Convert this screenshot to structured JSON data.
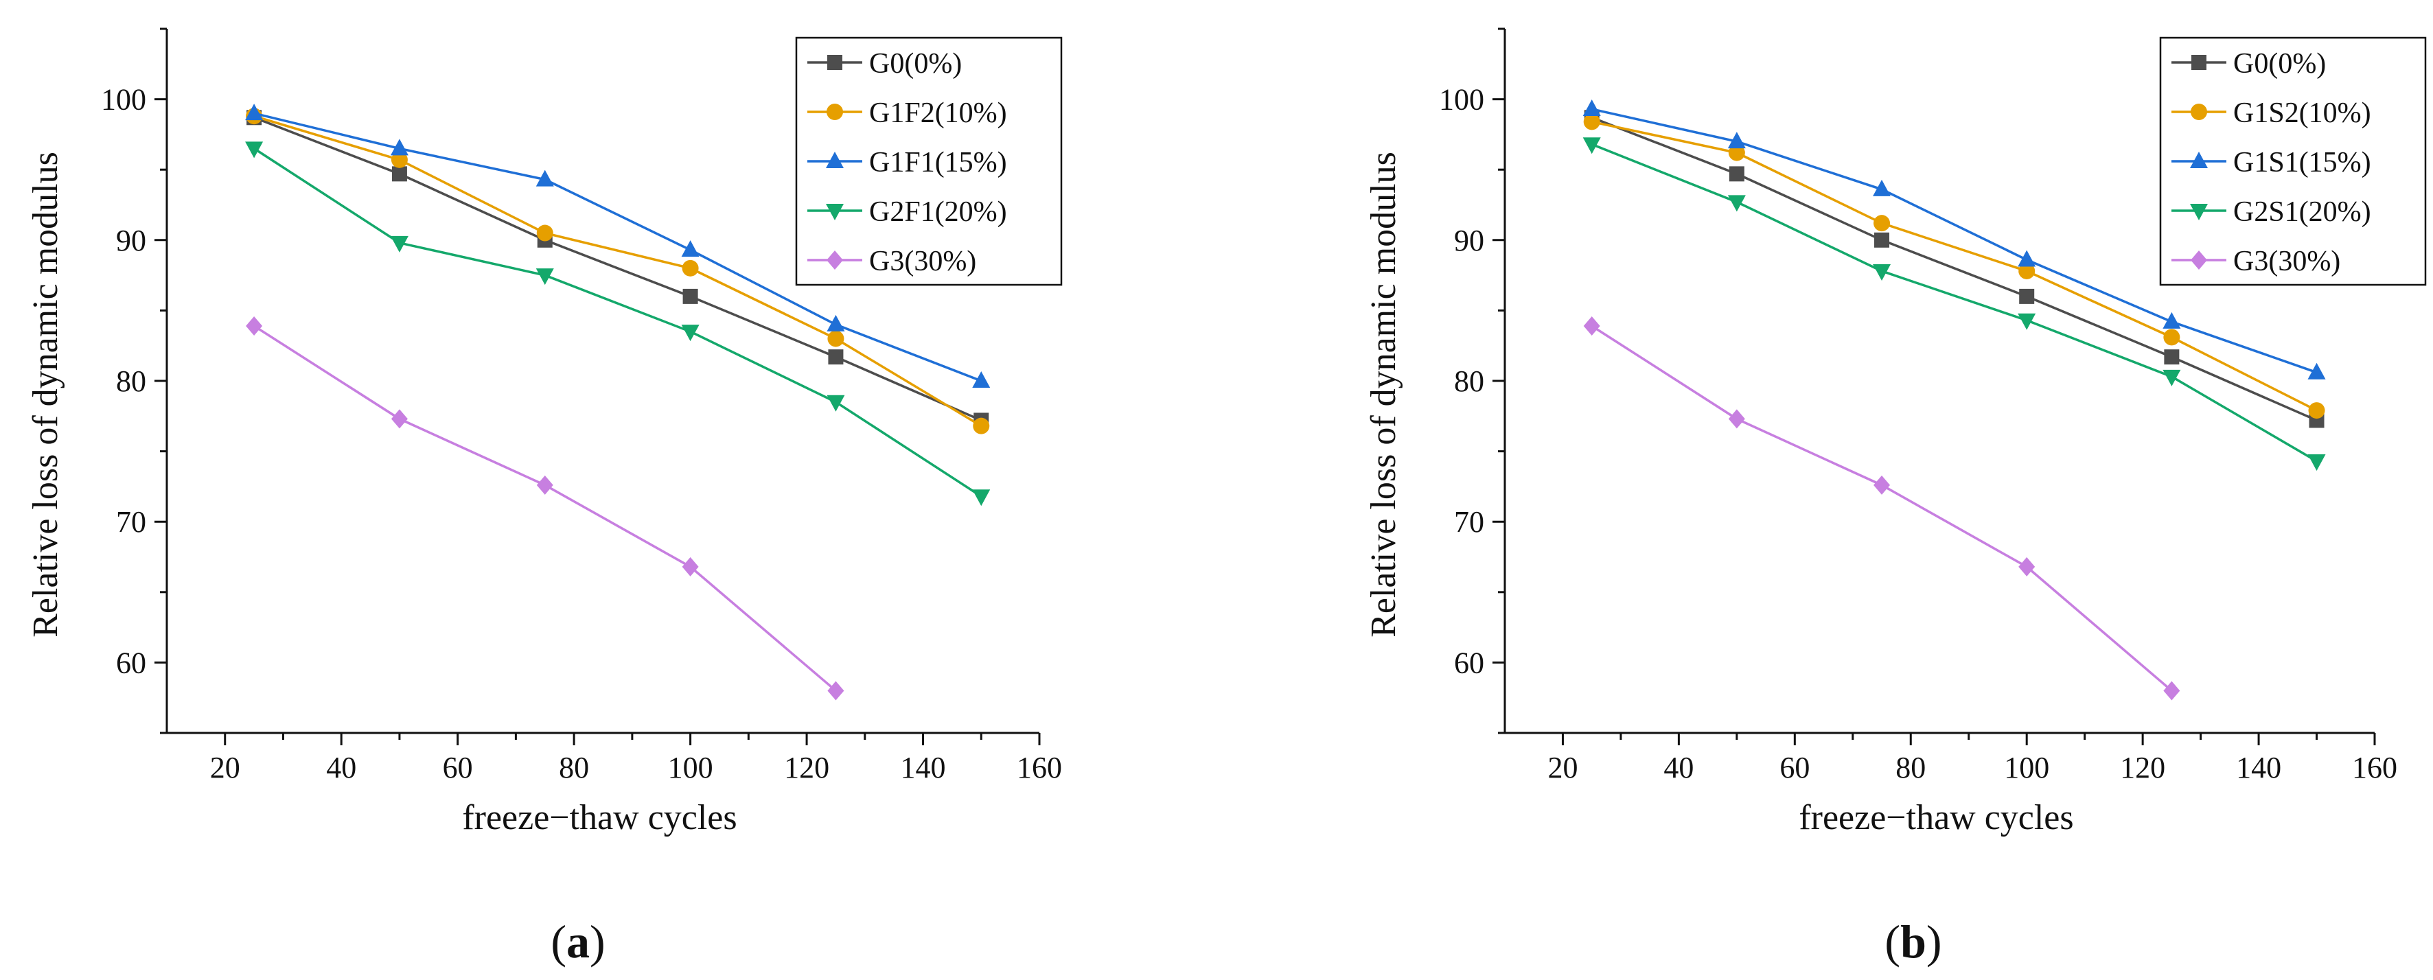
{
  "figure": {
    "panels": [
      {
        "label_open": "(",
        "label_letter": "a",
        "label_close": ")"
      },
      {
        "label_open": "(",
        "label_letter": "b",
        "label_close": ")"
      }
    ]
  },
  "chart_data": [
    {
      "type": "line",
      "title": "",
      "panel": "(a)",
      "xlabel": "freeze−thaw cycles",
      "ylabel": "Relative loss of dynamic modulus",
      "xlim": [
        10,
        160
      ],
      "ylim": [
        55,
        105
      ],
      "xticks": [
        20,
        40,
        60,
        80,
        100,
        120,
        140,
        160
      ],
      "yticks": [
        60,
        70,
        80,
        90,
        100
      ],
      "legend_position": "top-right",
      "x": [
        25,
        50,
        75,
        100,
        125,
        150
      ],
      "series": [
        {
          "name": "G0(0%)",
          "color": "#4d4d4d",
          "marker": "square",
          "values": [
            98.7,
            94.7,
            90.0,
            86.0,
            81.7,
            77.2
          ]
        },
        {
          "name": "G1F2(10%)",
          "color": "#e69f00",
          "marker": "circle",
          "values": [
            98.8,
            95.7,
            90.5,
            88.0,
            83.0,
            76.8
          ]
        },
        {
          "name": "G1F1(15%)",
          "color": "#1f6fd6",
          "marker": "triangle-up",
          "values": [
            99.0,
            96.5,
            94.3,
            89.3,
            84.0,
            80.0
          ]
        },
        {
          "name": "G2F1(20%)",
          "color": "#14a86b",
          "marker": "triangle-down",
          "values": [
            96.5,
            89.8,
            87.5,
            83.5,
            78.5,
            71.8
          ]
        },
        {
          "name": "G3(30%)",
          "color": "#c77fe0",
          "marker": "diamond",
          "values": [
            83.9,
            77.3,
            72.6,
            66.8,
            58.0,
            null
          ]
        }
      ]
    },
    {
      "type": "line",
      "title": "",
      "panel": "(b)",
      "xlabel": "freeze−thaw cycles",
      "ylabel": "Relative loss of dynamic modulus",
      "xlim": [
        10,
        160
      ],
      "ylim": [
        55,
        105
      ],
      "xticks": [
        20,
        40,
        60,
        80,
        100,
        120,
        140,
        160
      ],
      "yticks": [
        60,
        70,
        80,
        90,
        100
      ],
      "legend_position": "top-right",
      "x": [
        25,
        50,
        75,
        100,
        125,
        150
      ],
      "series": [
        {
          "name": "G0(0%)",
          "color": "#4d4d4d",
          "marker": "square",
          "values": [
            98.7,
            94.7,
            90.0,
            86.0,
            81.7,
            77.2
          ]
        },
        {
          "name": "G1S2(10%)",
          "color": "#e69f00",
          "marker": "circle",
          "values": [
            98.4,
            96.2,
            91.2,
            87.8,
            83.1,
            77.9
          ]
        },
        {
          "name": "G1S1(15%)",
          "color": "#1f6fd6",
          "marker": "triangle-up",
          "values": [
            99.3,
            97.0,
            93.6,
            88.6,
            84.2,
            80.6
          ]
        },
        {
          "name": "G2S1(20%)",
          "color": "#14a86b",
          "marker": "triangle-down",
          "values": [
            96.8,
            92.7,
            87.8,
            84.3,
            80.3,
            74.3
          ]
        },
        {
          "name": "G3(30%)",
          "color": "#c77fe0",
          "marker": "diamond",
          "values": [
            83.9,
            77.3,
            72.6,
            66.8,
            58.0,
            null
          ]
        }
      ]
    }
  ]
}
